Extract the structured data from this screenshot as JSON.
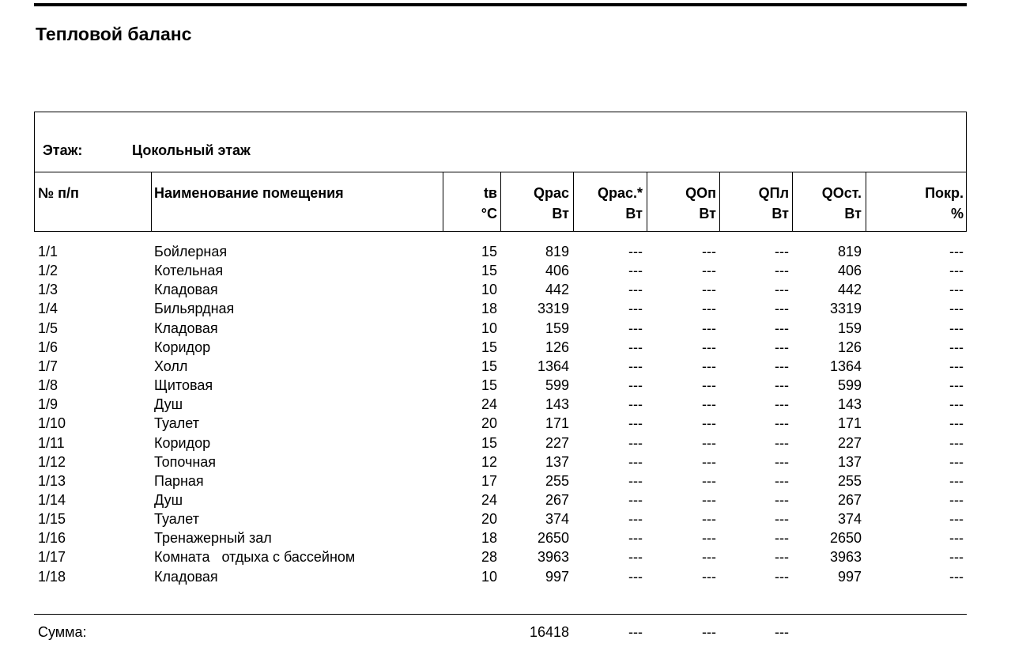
{
  "title": "Тепловой баланс",
  "floor": {
    "label": "Этаж:",
    "value": "Цокольный этаж"
  },
  "headers": [
    {
      "l1": "№ п/п",
      "l2": ""
    },
    {
      "l1": "Наименование помещения",
      "l2": ""
    },
    {
      "l1": "tв",
      "l2": "°C"
    },
    {
      "l1": "Qрас",
      "l2": "Вт"
    },
    {
      "l1": "Qрас.*",
      "l2": "Вт"
    },
    {
      "l1": "QОп",
      "l2": "Вт"
    },
    {
      "l1": "QПл",
      "l2": "Вт"
    },
    {
      "l1": "QОст.",
      "l2": "Вт"
    },
    {
      "l1": "Покр.",
      "l2": "%"
    }
  ],
  "rows": [
    [
      "1/1",
      "Бойлерная",
      "15",
      "819",
      "---",
      "---",
      "---",
      "819",
      "---"
    ],
    [
      "1/2",
      "Котельная",
      "15",
      "406",
      "---",
      "---",
      "---",
      "406",
      "---"
    ],
    [
      "1/3",
      "Кладовая",
      "10",
      "442",
      "---",
      "---",
      "---",
      "442",
      "---"
    ],
    [
      "1/4",
      "Бильярдная",
      "18",
      "3319",
      "---",
      "---",
      "---",
      "3319",
      "---"
    ],
    [
      "1/5",
      "Кладовая",
      "10",
      "159",
      "---",
      "---",
      "---",
      "159",
      "---"
    ],
    [
      "1/6",
      "Коридор",
      "15",
      "126",
      "---",
      "---",
      "---",
      "126",
      "---"
    ],
    [
      "1/7",
      "Холл",
      "15",
      "1364",
      "---",
      "---",
      "---",
      "1364",
      "---"
    ],
    [
      "1/8",
      "Щитовая",
      "15",
      "599",
      "---",
      "---",
      "---",
      "599",
      "---"
    ],
    [
      "1/9",
      "Душ",
      "24",
      "143",
      "---",
      "---",
      "---",
      "143",
      "---"
    ],
    [
      "1/10",
      "Туалет",
      "20",
      "171",
      "---",
      "---",
      "---",
      "171",
      "---"
    ],
    [
      "1/11",
      "Коридор",
      "15",
      "227",
      "---",
      "---",
      "---",
      "227",
      "---"
    ],
    [
      "1/12",
      "Топочная",
      "12",
      "137",
      "---",
      "---",
      "---",
      "137",
      "---"
    ],
    [
      "1/13",
      "Парная",
      "17",
      "255",
      "---",
      "---",
      "---",
      "255",
      "---"
    ],
    [
      "1/14",
      "Душ",
      "24",
      "267",
      "---",
      "---",
      "---",
      "267",
      "---"
    ],
    [
      "1/15",
      "Туалет",
      "20",
      "374",
      "---",
      "---",
      "---",
      "374",
      "---"
    ],
    [
      "1/16",
      "Тренажерный зал",
      "18",
      "2650",
      "---",
      "---",
      "---",
      "2650",
      "---"
    ],
    [
      "1/17",
      "Комната   отдыха с бассейном",
      "28",
      "3963",
      "---",
      "---",
      "---",
      "3963",
      "---"
    ],
    [
      "1/18",
      "Кладовая",
      "10",
      "997",
      "---",
      "---",
      "---",
      "997",
      "---"
    ]
  ],
  "summary": {
    "label": "Сумма:",
    "qras": "16418",
    "qras_star": "---",
    "qop": "---",
    "qpl": "---"
  }
}
